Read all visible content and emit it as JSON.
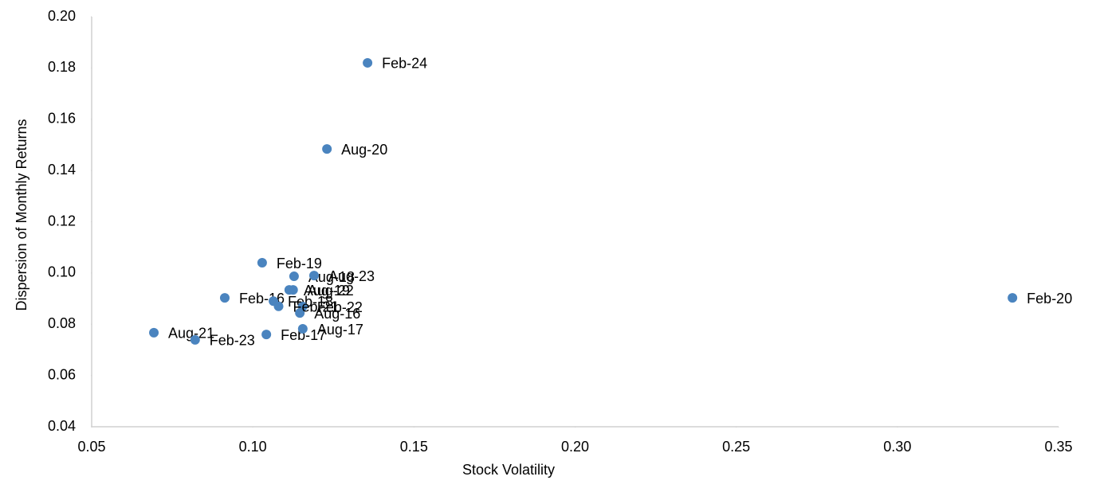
{
  "chart_data": {
    "type": "scatter",
    "x_label": "Stock Volatility",
    "y_label": "Dispersion of Monthly Returns",
    "labels": [
      "Feb-24",
      "Aug-20",
      "Feb-19",
      "Feb-20",
      "Aug-18",
      "Aug-23",
      "Aug-19",
      "Aug-22",
      "Feb-16",
      "Feb-18",
      "Feb-22",
      "Aug-16",
      "Feb-21",
      "Aug-21",
      "Feb-23",
      "Feb-17",
      "Aug-17"
    ],
    "x": [
      0.1356,
      0.123,
      0.1029,
      0.3357,
      0.1128,
      0.119,
      0.1113,
      0.1125,
      0.0913,
      0.1064,
      0.1155,
      0.1146,
      0.108,
      0.0693,
      0.0821,
      0.1042,
      0.1155
    ],
    "values": [
      0.182,
      0.1484,
      0.104,
      0.0903,
      0.0987,
      0.099,
      0.0934,
      0.0934,
      0.0903,
      0.089,
      0.0869,
      0.0844,
      0.087,
      0.0767,
      0.0739,
      0.076,
      0.0782
    ],
    "color": "#4a84bf",
    "xlim": [
      0.05,
      0.35
    ],
    "ylim": [
      0.04,
      0.2
    ],
    "xticks": [
      0.05,
      {
        "value": 0.1,
        "label": "0.10"
      },
      0.15,
      {
        "value": 0.2,
        "label": "0.20"
      },
      0.25,
      {
        "value": 0.3,
        "label": "0.30"
      },
      0.35
    ],
    "yticks": [
      0.04,
      0.06,
      0.08,
      {
        "value": 0.1,
        "label": "0.10"
      },
      0.12,
      0.14,
      0.16,
      0.18,
      {
        "value": 0.2,
        "label": "0.20"
      }
    ]
  }
}
